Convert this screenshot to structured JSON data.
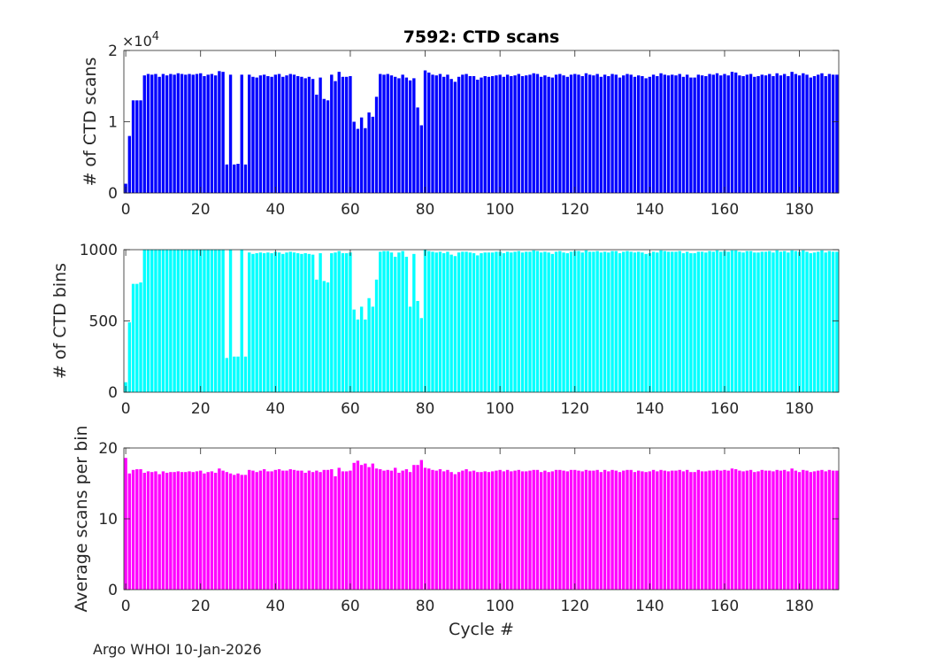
{
  "figure": {
    "title": "7592: CTD scans",
    "footer": "Argo WHOI 10-Jan-2026",
    "xlabel": "Cycle #"
  },
  "chart_data": [
    {
      "type": "bar",
      "title": "7592: CTD scans",
      "ylabel": "# of CTD scans",
      "xlabel": "",
      "color": "#0000ff",
      "exponent_label": "×10^4",
      "xlim": [
        -0.5,
        190.5
      ],
      "ylim": [
        0,
        20000
      ],
      "xticks": [
        0,
        20,
        40,
        60,
        80,
        100,
        120,
        140,
        160,
        180
      ],
      "yticks": [
        0,
        10000,
        20000
      ],
      "ytick_labels": [
        "0",
        "1",
        "2"
      ],
      "grid": false,
      "x_start": 0,
      "values": [
        1300,
        8000,
        13000,
        13000,
        13000,
        16500,
        16700,
        16600,
        16700,
        16300,
        16700,
        16500,
        16700,
        16600,
        16800,
        16700,
        16600,
        16700,
        16600,
        16700,
        16800,
        16400,
        16600,
        16700,
        16500,
        17100,
        17000,
        4000,
        16600,
        4000,
        4100,
        16600,
        4000,
        16600,
        16300,
        16200,
        16500,
        16600,
        16400,
        16300,
        16600,
        16700,
        16300,
        16500,
        16700,
        16600,
        16400,
        16300,
        16100,
        16300,
        16000,
        13800,
        16200,
        13200,
        13000,
        16600,
        15700,
        17000,
        16300,
        16300,
        16400,
        10000,
        9000,
        10600,
        9100,
        11300,
        10700,
        13500,
        16700,
        16600,
        16700,
        16500,
        16300,
        16100,
        16600,
        16200,
        15800,
        16100,
        12000,
        9500,
        17200,
        16900,
        16600,
        16500,
        16700,
        16300,
        16600,
        16000,
        15600,
        16300,
        16600,
        16700,
        16400,
        16400,
        15900,
        16200,
        16400,
        16300,
        16400,
        16500,
        16600,
        16300,
        16600,
        16400,
        16500,
        16700,
        16400,
        16500,
        16600,
        16800,
        16700,
        16300,
        16500,
        16300,
        16200,
        16600,
        16700,
        16500,
        16300,
        16600,
        16700,
        16600,
        16400,
        16800,
        16600,
        16500,
        16700,
        16300,
        16600,
        16400,
        16700,
        16600,
        16200,
        16500,
        16700,
        16600,
        16300,
        16500,
        16400,
        16100,
        16300,
        16600,
        16400,
        16800,
        16600,
        16500,
        16600,
        16500,
        16700,
        16300,
        16600,
        16200,
        16200,
        16600,
        16500,
        16400,
        16700,
        16600,
        16800,
        16500,
        16700,
        16500,
        17000,
        16900,
        16500,
        16400,
        16600,
        16700,
        16300,
        16400,
        16600,
        16500,
        16700,
        16400,
        16800,
        16500,
        16700,
        16400,
        17000,
        16700,
        16500,
        16800,
        16600,
        16200,
        16400,
        16600,
        16800,
        16400,
        16700,
        16600,
        16600
      ]
    },
    {
      "type": "bar",
      "ylabel": "# of CTD bins",
      "xlabel": "",
      "color": "#00ffff",
      "xlim": [
        -0.5,
        190.5
      ],
      "ylim": [
        0,
        1000
      ],
      "xticks": [
        0,
        20,
        40,
        60,
        80,
        100,
        120,
        140,
        160,
        180
      ],
      "yticks": [
        0,
        500,
        1000
      ],
      "ytick_labels": [
        "0",
        "500",
        "1000"
      ],
      "grid": false,
      "x_start": 0,
      "values": [
        70,
        490,
        760,
        760,
        770,
        1000,
        1000,
        1000,
        1000,
        1000,
        1000,
        1000,
        1000,
        1000,
        1000,
        1000,
        1000,
        1000,
        1000,
        1000,
        1000,
        1000,
        1000,
        1000,
        1000,
        1000,
        1000,
        240,
        1000,
        250,
        250,
        1000,
        250,
        980,
        970,
        975,
        980,
        975,
        980,
        975,
        985,
        980,
        970,
        980,
        985,
        980,
        975,
        970,
        975,
        970,
        965,
        790,
        975,
        780,
        770,
        975,
        980,
        990,
        975,
        975,
        980,
        580,
        510,
        600,
        510,
        660,
        600,
        790,
        985,
        990,
        990,
        980,
        950,
        980,
        990,
        950,
        600,
        970,
        640,
        520,
        1000,
        990,
        985,
        980,
        985,
        975,
        985,
        965,
        955,
        980,
        985,
        985,
        980,
        975,
        960,
        975,
        980,
        980,
        980,
        985,
        985,
        975,
        985,
        980,
        985,
        990,
        980,
        985,
        985,
        995,
        990,
        980,
        985,
        980,
        970,
        985,
        990,
        980,
        975,
        985,
        990,
        990,
        980,
        995,
        985,
        985,
        990,
        980,
        985,
        980,
        990,
        990,
        975,
        985,
        990,
        985,
        980,
        985,
        980,
        970,
        975,
        985,
        980,
        995,
        990,
        985,
        985,
        985,
        990,
        975,
        985,
        975,
        975,
        985,
        985,
        980,
        990,
        985,
        995,
        985,
        990,
        985,
        995,
        995,
        985,
        980,
        990,
        990,
        980,
        980,
        985,
        985,
        990,
        980,
        995,
        985,
        990,
        980,
        995,
        990,
        985,
        995,
        985,
        975,
        980,
        985,
        995,
        980,
        990,
        985,
        985
      ]
    },
    {
      "type": "bar",
      "ylabel": "Average scans per bin",
      "xlabel": "Cycle #",
      "color": "#ff00ff",
      "xlim": [
        -0.5,
        190.5
      ],
      "ylim": [
        0,
        20
      ],
      "xticks": [
        0,
        20,
        40,
        60,
        80,
        100,
        120,
        140,
        160,
        180
      ],
      "yticks": [
        0,
        10,
        20
      ],
      "ytick_labels": [
        "0",
        "10",
        "20"
      ],
      "grid": false,
      "x_start": 0,
      "values": [
        18.6,
        16.4,
        16.9,
        17.0,
        17.0,
        16.5,
        16.7,
        16.6,
        16.7,
        16.3,
        16.7,
        16.5,
        16.6,
        16.6,
        16.7,
        16.6,
        16.6,
        16.7,
        16.6,
        16.7,
        16.8,
        16.4,
        16.6,
        16.7,
        16.5,
        17.1,
        16.8,
        16.6,
        16.4,
        16.2,
        16.4,
        16.2,
        16.2,
        16.9,
        16.8,
        16.6,
        16.8,
        17.0,
        16.7,
        16.7,
        16.9,
        17.0,
        16.8,
        16.8,
        17.0,
        16.9,
        16.8,
        16.8,
        16.5,
        16.8,
        16.6,
        16.8,
        16.6,
        16.9,
        16.9,
        17.0,
        16.0,
        17.2,
        16.7,
        16.7,
        16.8,
        17.9,
        18.2,
        17.6,
        17.8,
        17.3,
        17.8,
        17.1,
        17.0,
        16.8,
        16.9,
        16.8,
        17.2,
        16.5,
        16.8,
        17.0,
        16.6,
        17.6,
        17.6,
        18.3,
        17.2,
        17.1,
        16.9,
        16.8,
        17.0,
        16.7,
        16.9,
        16.6,
        16.3,
        16.6,
        16.8,
        17.0,
        16.7,
        16.8,
        16.6,
        16.6,
        16.7,
        16.6,
        16.7,
        16.8,
        16.9,
        16.7,
        16.9,
        16.7,
        16.8,
        16.9,
        16.7,
        16.7,
        16.8,
        16.9,
        16.9,
        16.6,
        16.8,
        16.6,
        16.7,
        16.9,
        16.9,
        16.8,
        16.7,
        16.9,
        16.9,
        16.8,
        16.7,
        16.9,
        16.8,
        16.8,
        16.9,
        16.6,
        16.9,
        16.7,
        16.9,
        16.8,
        16.6,
        16.8,
        16.9,
        16.9,
        16.6,
        16.8,
        16.7,
        16.6,
        16.7,
        16.9,
        16.7,
        16.9,
        16.8,
        16.7,
        16.8,
        16.8,
        16.9,
        16.7,
        16.9,
        16.6,
        16.6,
        16.9,
        16.7,
        16.7,
        16.8,
        16.8,
        16.9,
        16.8,
        16.9,
        16.8,
        17.1,
        17.0,
        16.8,
        16.7,
        16.8,
        16.9,
        16.6,
        16.7,
        16.9,
        16.8,
        16.8,
        16.7,
        16.9,
        16.8,
        16.9,
        16.7,
        17.1,
        16.8,
        16.6,
        16.9,
        16.8,
        16.6,
        16.7,
        16.8,
        16.9,
        16.7,
        16.9,
        16.8,
        16.8
      ]
    }
  ]
}
